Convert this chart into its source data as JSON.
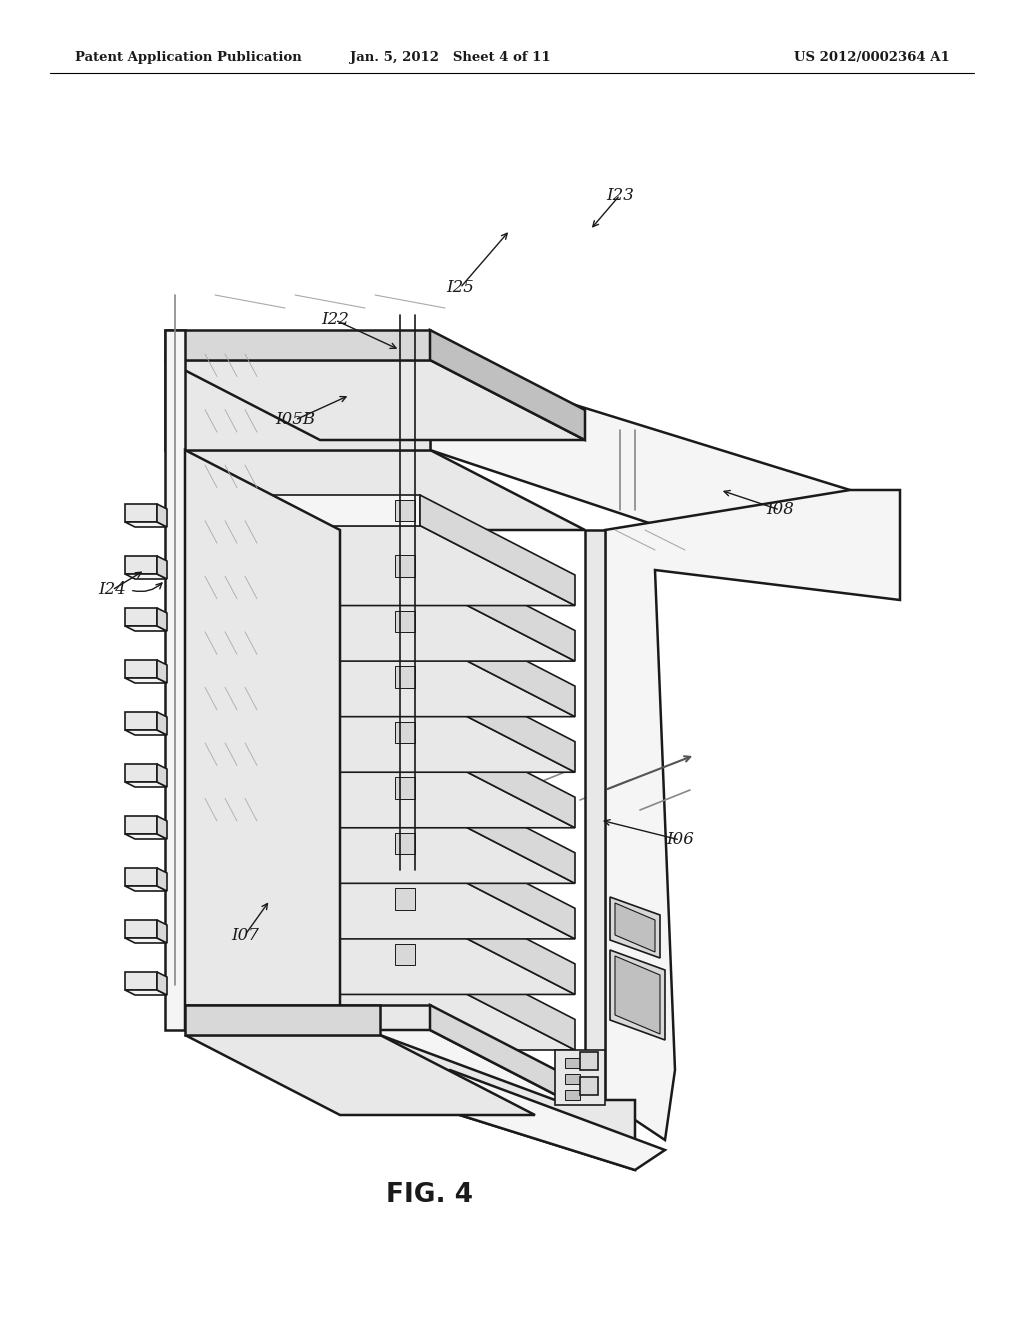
{
  "bg_color": "#ffffff",
  "header_left": "Patent Application Publication",
  "header_center": "Jan. 5, 2012   Sheet 4 of 11",
  "header_right": "US 2012/0002364 A1",
  "fig_label": "FIG. 4",
  "lc": "#1a1a1a",
  "gray1": "#f5f5f5",
  "gray2": "#e8e8e8",
  "gray3": "#d8d8d8",
  "gray4": "#c0c0c0",
  "gray5": "#b0b0b0",
  "num_drives": 9,
  "label_fontsize": 12
}
